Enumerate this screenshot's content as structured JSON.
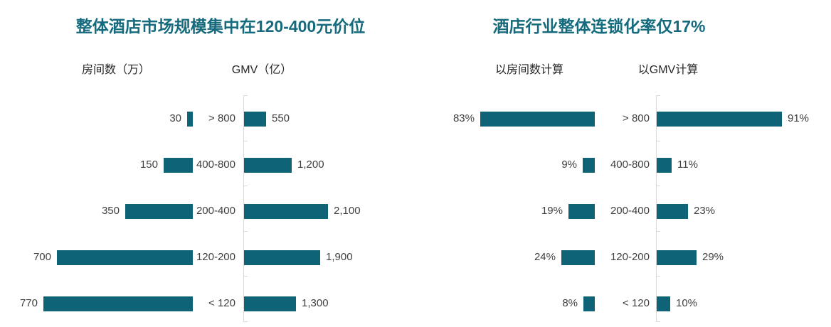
{
  "colors": {
    "bar": "#0e6376",
    "title": "#156b7d",
    "axis": "#d9d9d9",
    "label": "#3f3f3f",
    "series_label": "#262626"
  },
  "chart_data": [
    {
      "type": "bar",
      "layout": "horizontal-butterfly",
      "title": "整体酒店市场规模集中在120-400元价位",
      "categories": [
        "> 800",
        "400-800",
        "200-400",
        "120-200",
        "< 120"
      ],
      "series": [
        {
          "name": "房间数（万）",
          "direction": "left",
          "values": [
            30,
            150,
            350,
            700,
            770
          ],
          "labels": [
            "30",
            "150",
            "350",
            "700",
            "770"
          ]
        },
        {
          "name": "GMV（亿）",
          "direction": "right",
          "values": [
            550,
            1200,
            2100,
            1900,
            1300
          ],
          "labels": [
            "550",
            "1,200",
            "2,100",
            "1,900",
            "1,300"
          ]
        }
      ],
      "legend_position": "top",
      "grid": false
    },
    {
      "type": "bar",
      "layout": "horizontal-butterfly",
      "title": "酒店行业整体连锁化率仅17%",
      "categories": [
        "> 800",
        "400-800",
        "200-400",
        "120-200",
        "< 120"
      ],
      "series": [
        {
          "name": "以房间数计算",
          "direction": "left",
          "values": [
            83,
            9,
            19,
            24,
            8
          ],
          "labels": [
            "83%",
            "9%",
            "19%",
            "24%",
            "8%"
          ]
        },
        {
          "name": "以GMV计算",
          "direction": "right",
          "values": [
            91,
            11,
            23,
            29,
            10
          ],
          "labels": [
            "91%",
            "11%",
            "23%",
            "29%",
            "10%"
          ]
        }
      ],
      "legend_position": "top",
      "grid": false
    }
  ]
}
